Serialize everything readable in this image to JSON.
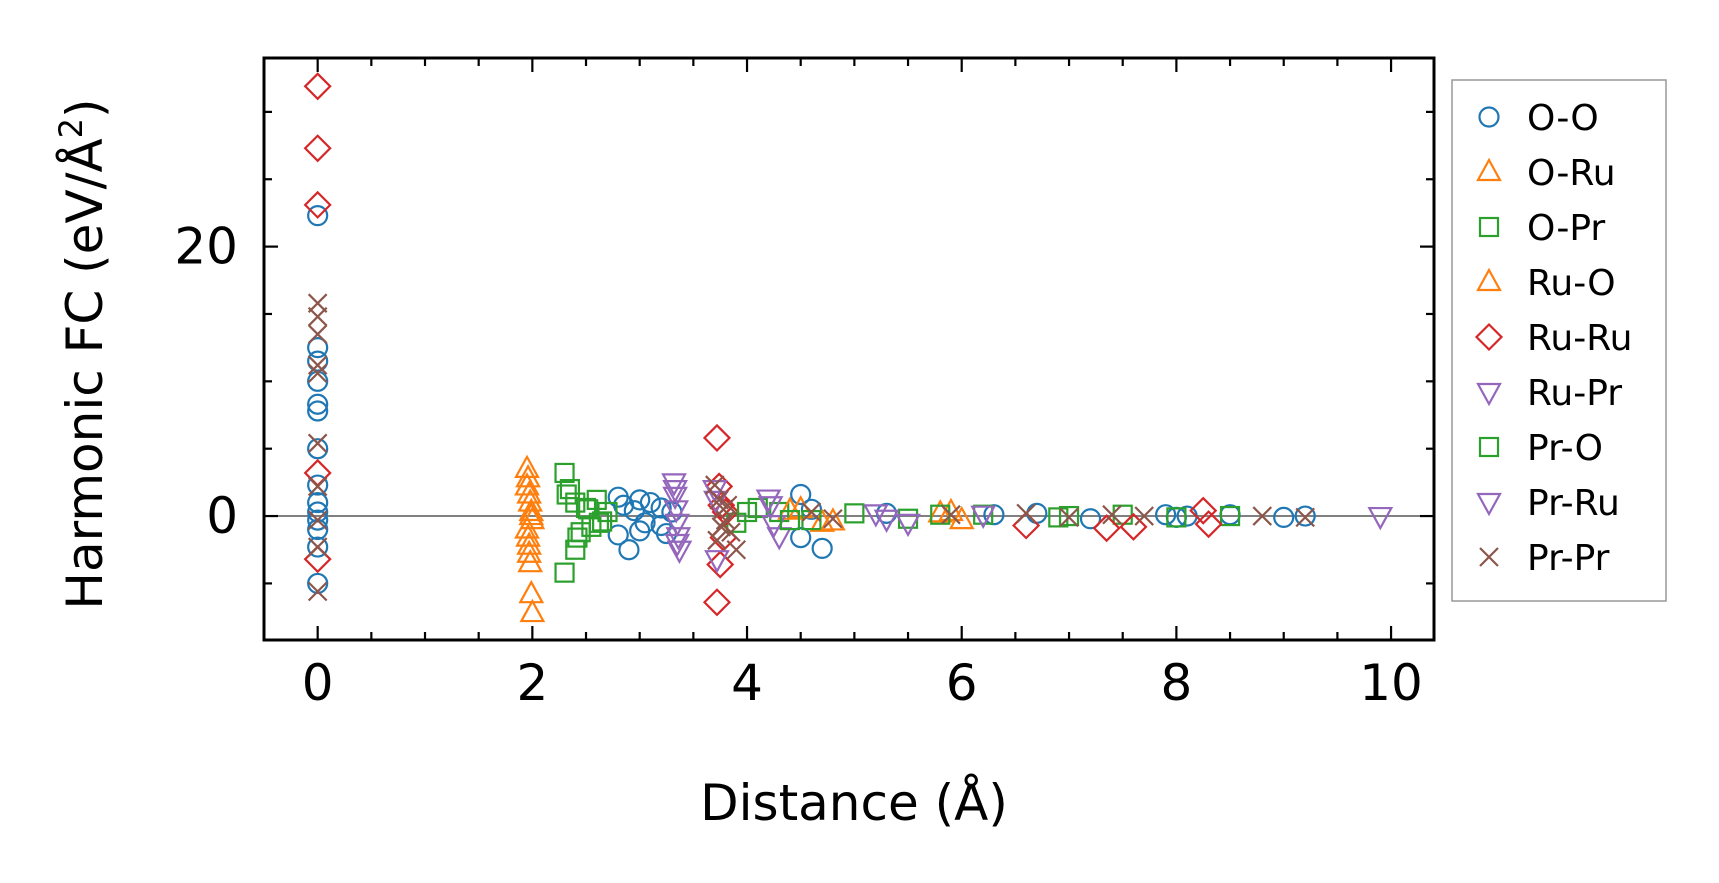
{
  "chart_data": {
    "type": "scatter",
    "xlabel": "Distance (Å)",
    "ylabel_main": "Harmonic FC (eV/Å",
    "ylabel_sup": "2",
    "ylabel_close": ")",
    "xlim": [
      -0.5,
      10.4
    ],
    "ylim": [
      -9.2,
      34
    ],
    "x_ticks": [
      0,
      2,
      4,
      6,
      8,
      10
    ],
    "x_tick_labels": [
      "0",
      "2",
      "4",
      "6",
      "8",
      "10"
    ],
    "y_ticks": [
      0,
      20
    ],
    "y_tick_labels": [
      "0",
      "20"
    ],
    "zero_line": true,
    "grid": false,
    "legend_position": "outside-right",
    "series": [
      {
        "name": "O-O",
        "marker": "circle",
        "color": "#1f77b4",
        "x": [
          0,
          0,
          0,
          0,
          0,
          0,
          0,
          0,
          0,
          0,
          0,
          0,
          0,
          0,
          2.8,
          2.8,
          2.85,
          2.9,
          2.95,
          3.0,
          3.0,
          3.05,
          3.1,
          3.2,
          3.2,
          3.25,
          3.3,
          4.5,
          4.5,
          4.6,
          4.7,
          5.3,
          6.3,
          6.7,
          7.2,
          7.9,
          8.0,
          8.1,
          8.5,
          9.0,
          9.2
        ],
        "y": [
          22.3,
          12.5,
          11.5,
          10.0,
          8.3,
          7.8,
          5.0,
          2.3,
          1.0,
          0.3,
          -0.3,
          -1.0,
          -2.3,
          -5.0,
          1.4,
          -1.4,
          0.8,
          -2.5,
          0.4,
          1.2,
          -1.1,
          -0.5,
          1.0,
          0.6,
          -0.7,
          -1.3,
          0.3,
          1.6,
          -1.6,
          0.5,
          -2.4,
          0.2,
          0.1,
          0.2,
          -0.2,
          0.1,
          -0.1,
          0.0,
          0.1,
          -0.1,
          0.0
        ]
      },
      {
        "name": "O-Ru",
        "marker": "triangle-up",
        "color": "#ff7f0e",
        "x": [
          1.95,
          1.96,
          1.97,
          1.98,
          1.99,
          2.0,
          1.95,
          1.96,
          1.97,
          1.98,
          1.99,
          2.0,
          4.5,
          4.7,
          5.9,
          6.0
        ],
        "y": [
          3.5,
          2.8,
          1.6,
          1.0,
          0.3,
          -0.3,
          -1.0,
          -1.6,
          -2.8,
          -3.5,
          -5.8,
          -7.2,
          0.5,
          -0.5,
          0.3,
          -0.3
        ]
      },
      {
        "name": "O-Pr",
        "marker": "square",
        "color": "#2ca02c",
        "x": [
          2.3,
          2.3,
          2.35,
          2.4,
          2.4,
          2.45,
          2.5,
          2.55,
          2.6,
          2.65,
          2.7,
          3.9,
          4.1,
          4.3,
          4.6,
          5.0,
          5.5,
          6.2,
          7.0,
          7.5,
          8.0,
          8.5
        ],
        "y": [
          3.2,
          -4.2,
          2.0,
          -2.5,
          1.0,
          -1.2,
          0.6,
          -0.8,
          1.2,
          -0.4,
          0.3,
          -0.5,
          0.6,
          0.3,
          -0.3,
          0.2,
          -0.2,
          0.1,
          0.0,
          0.1,
          -0.1,
          0.0
        ]
      },
      {
        "name": "Ru-O",
        "marker": "triangle-up",
        "color": "#ff7f0e",
        "x": [
          1.95,
          1.97,
          1.99,
          4.4,
          4.8,
          5.8
        ],
        "y": [
          2.2,
          -2.2,
          0.0,
          0.4,
          -0.4,
          0.2
        ]
      },
      {
        "name": "Ru-Ru",
        "marker": "diamond",
        "color": "#d62728",
        "x": [
          0,
          0,
          0,
          0,
          0,
          3.72,
          3.72,
          3.74,
          3.75,
          3.76,
          3.78,
          3.8,
          6.6,
          7.35,
          7.6,
          8.25,
          8.3
        ],
        "y": [
          31.9,
          27.3,
          23.1,
          3.2,
          -3.2,
          5.8,
          -6.4,
          2.2,
          -3.6,
          0.8,
          -1.6,
          0.3,
          -0.7,
          -0.9,
          -0.8,
          0.4,
          -0.6
        ]
      },
      {
        "name": "Ru-Pr",
        "marker": "triangle-down",
        "color": "#9467bd",
        "x": [
          3.32,
          3.33,
          3.34,
          3.35,
          3.36,
          3.37,
          3.7,
          3.72,
          4.2,
          4.25,
          4.3,
          5.2,
          5.5,
          6.2,
          9.9
        ],
        "y": [
          2.5,
          1.5,
          0.5,
          -0.5,
          -1.5,
          -2.5,
          2.0,
          -3.2,
          1.3,
          -0.6,
          -1.5,
          0.2,
          -0.5,
          0.1,
          0.0
        ]
      },
      {
        "name": "Pr-O",
        "marker": "square",
        "color": "#2ca02c",
        "x": [
          2.32,
          2.42,
          2.52,
          2.62,
          4.0,
          4.4,
          5.8,
          6.9
        ],
        "y": [
          1.6,
          -1.6,
          0.5,
          -0.5,
          0.3,
          -0.3,
          0.1,
          -0.1
        ]
      },
      {
        "name": "Pr-Ru",
        "marker": "triangle-down",
        "color": "#9467bd",
        "x": [
          3.33,
          3.35,
          3.71,
          4.22,
          5.3
        ],
        "y": [
          2.0,
          -2.0,
          1.2,
          0.8,
          -0.2
        ]
      },
      {
        "name": "Pr-Pr",
        "marker": "x",
        "color": "#8c564b",
        "x": [
          0,
          0,
          0,
          0,
          0,
          0,
          0,
          0,
          0,
          0,
          3.7,
          3.72,
          3.74,
          3.76,
          3.78,
          3.8,
          3.82,
          3.85,
          3.9,
          4.6,
          4.8,
          5.9,
          6.6,
          7.0,
          7.4,
          7.7,
          8.8,
          9.2
        ],
        "y": [
          15.8,
          14.8,
          13.5,
          11.2,
          10.6,
          5.4,
          2.2,
          -0.3,
          -2.3,
          -5.6,
          2.3,
          -1.8,
          1.2,
          -0.8,
          0.5,
          -0.3,
          0.8,
          -1.2,
          -2.5,
          0.3,
          -0.2,
          0.1,
          0.2,
          -0.1,
          0.1,
          0.0,
          0.0,
          -0.1
        ]
      }
    ]
  }
}
